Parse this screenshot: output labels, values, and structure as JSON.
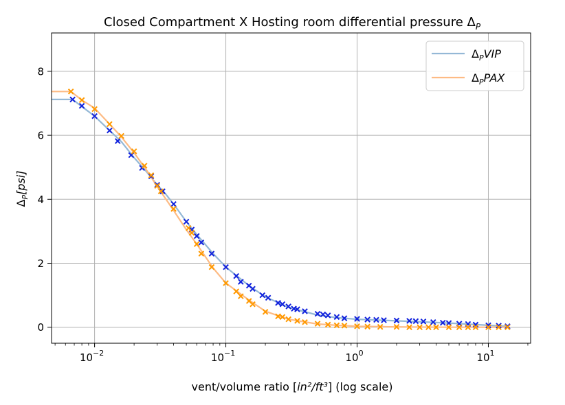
{
  "chart_data": {
    "type": "line",
    "title": "Closed Compartment X Hosting room differential pressure Δ",
    "title_sub": "P",
    "xlabel_pre": "vent/volume ratio [",
    "xlabel_math": "in²/ft³",
    "xlabel_post": "] (log scale)",
    "ylabel_main": "Δ",
    "ylabel_sub": "P",
    "ylabel_unit": "[psi]",
    "xscale": "log",
    "xlim": [
      0.0047,
      21
    ],
    "ylim": [
      -0.5,
      9.2
    ],
    "grid": true,
    "legend_position": "top-right",
    "x_ticks": [
      {
        "value": 0.01,
        "base": "10",
        "exp": "−2"
      },
      {
        "value": 0.1,
        "base": "10",
        "exp": "−1"
      },
      {
        "value": 1,
        "base": "10",
        "exp": "0"
      },
      {
        "value": 10,
        "base": "10",
        "exp": "1"
      }
    ],
    "y_ticks": [
      {
        "value": 0,
        "label": "0"
      },
      {
        "value": 2,
        "label": "2"
      },
      {
        "value": 4,
        "label": "4"
      },
      {
        "value": 6,
        "label": "6"
      },
      {
        "value": 8,
        "label": "8"
      }
    ],
    "series": [
      {
        "name": "VIP",
        "legend_prefix": "Δ",
        "legend_sub": "P",
        "line_color": "#94b8d6",
        "marker_color": "#1122dd",
        "line": [
          [
            0.0047,
            7.12
          ],
          [
            0.0068,
            7.12
          ],
          [
            0.008,
            6.9
          ],
          [
            0.01,
            6.6
          ],
          [
            0.013,
            6.15
          ],
          [
            0.016,
            5.8
          ],
          [
            0.02,
            5.3
          ],
          [
            0.025,
            4.85
          ],
          [
            0.03,
            4.45
          ],
          [
            0.035,
            4.15
          ],
          [
            0.04,
            3.85
          ],
          [
            0.05,
            3.3
          ],
          [
            0.06,
            2.9
          ],
          [
            0.08,
            2.3
          ],
          [
            0.1,
            1.88
          ],
          [
            0.15,
            1.3
          ],
          [
            0.2,
            0.95
          ],
          [
            0.3,
            0.62
          ],
          [
            0.5,
            0.38
          ],
          [
            0.7,
            0.3
          ],
          [
            1.0,
            0.25
          ],
          [
            2.0,
            0.2
          ],
          [
            5.0,
            0.13
          ],
          [
            10.0,
            0.06
          ],
          [
            14.0,
            0.03
          ]
        ],
        "markers": [
          [
            0.0068,
            7.12
          ],
          [
            0.008,
            6.92
          ],
          [
            0.01,
            6.6
          ],
          [
            0.013,
            6.15
          ],
          [
            0.015,
            5.82
          ],
          [
            0.019,
            5.38
          ],
          [
            0.023,
            4.98
          ],
          [
            0.027,
            4.72
          ],
          [
            0.03,
            4.45
          ],
          [
            0.033,
            4.25
          ],
          [
            0.04,
            3.85
          ],
          [
            0.05,
            3.3
          ],
          [
            0.055,
            3.05
          ],
          [
            0.06,
            2.85
          ],
          [
            0.065,
            2.65
          ],
          [
            0.078,
            2.3
          ],
          [
            0.1,
            1.88
          ],
          [
            0.12,
            1.6
          ],
          [
            0.13,
            1.42
          ],
          [
            0.15,
            1.3
          ],
          [
            0.16,
            1.2
          ],
          [
            0.19,
            1.0
          ],
          [
            0.21,
            0.92
          ],
          [
            0.25,
            0.76
          ],
          [
            0.27,
            0.72
          ],
          [
            0.3,
            0.65
          ],
          [
            0.33,
            0.58
          ],
          [
            0.35,
            0.56
          ],
          [
            0.4,
            0.5
          ],
          [
            0.5,
            0.42
          ],
          [
            0.55,
            0.4
          ],
          [
            0.6,
            0.37
          ],
          [
            0.7,
            0.32
          ],
          [
            0.8,
            0.28
          ],
          [
            1.0,
            0.26
          ],
          [
            1.2,
            0.24
          ],
          [
            1.4,
            0.23
          ],
          [
            1.6,
            0.22
          ],
          [
            2.0,
            0.21
          ],
          [
            2.5,
            0.2
          ],
          [
            2.8,
            0.19
          ],
          [
            3.2,
            0.18
          ],
          [
            3.8,
            0.16
          ],
          [
            4.5,
            0.14
          ],
          [
            5.0,
            0.13
          ],
          [
            6.0,
            0.11
          ],
          [
            7.0,
            0.1
          ],
          [
            8.0,
            0.08
          ],
          [
            10.0,
            0.06
          ],
          [
            12.0,
            0.05
          ],
          [
            14.0,
            0.03
          ]
        ]
      },
      {
        "name": "PAX",
        "legend_prefix": "Δ",
        "legend_sub": "P",
        "line_color": "#fdbb84",
        "marker_color": "#ff9900",
        "line": [
          [
            0.0047,
            7.37
          ],
          [
            0.0066,
            7.37
          ],
          [
            0.008,
            7.1
          ],
          [
            0.01,
            6.85
          ],
          [
            0.013,
            6.35
          ],
          [
            0.016,
            5.95
          ],
          [
            0.02,
            5.45
          ],
          [
            0.025,
            4.9
          ],
          [
            0.03,
            4.4
          ],
          [
            0.035,
            4.0
          ],
          [
            0.04,
            3.65
          ],
          [
            0.05,
            3.05
          ],
          [
            0.06,
            2.6
          ],
          [
            0.08,
            1.85
          ],
          [
            0.1,
            1.38
          ],
          [
            0.15,
            0.85
          ],
          [
            0.2,
            0.5
          ],
          [
            0.3,
            0.25
          ],
          [
            0.5,
            0.1
          ],
          [
            0.7,
            0.06
          ],
          [
            1.0,
            0.03
          ],
          [
            2.0,
            0.01
          ],
          [
            5.0,
            0.0
          ],
          [
            10.0,
            0.0
          ],
          [
            14.0,
            0.0
          ]
        ],
        "markers": [
          [
            0.0066,
            7.37
          ],
          [
            0.008,
            7.1
          ],
          [
            0.01,
            6.82
          ],
          [
            0.013,
            6.35
          ],
          [
            0.016,
            5.98
          ],
          [
            0.02,
            5.5
          ],
          [
            0.024,
            5.05
          ],
          [
            0.027,
            4.75
          ],
          [
            0.03,
            4.42
          ],
          [
            0.032,
            4.25
          ],
          [
            0.04,
            3.7
          ],
          [
            0.052,
            3.1
          ],
          [
            0.055,
            2.95
          ],
          [
            0.06,
            2.6
          ],
          [
            0.065,
            2.3
          ],
          [
            0.078,
            1.88
          ],
          [
            0.1,
            1.38
          ],
          [
            0.12,
            1.12
          ],
          [
            0.13,
            0.97
          ],
          [
            0.15,
            0.82
          ],
          [
            0.16,
            0.72
          ],
          [
            0.2,
            0.48
          ],
          [
            0.25,
            0.34
          ],
          [
            0.27,
            0.32
          ],
          [
            0.3,
            0.25
          ],
          [
            0.35,
            0.2
          ],
          [
            0.4,
            0.16
          ],
          [
            0.5,
            0.11
          ],
          [
            0.6,
            0.08
          ],
          [
            0.7,
            0.06
          ],
          [
            0.8,
            0.05
          ],
          [
            1.0,
            0.03
          ],
          [
            1.2,
            0.02
          ],
          [
            1.5,
            0.01
          ],
          [
            2.0,
            0.01
          ],
          [
            2.5,
            0.0
          ],
          [
            3.0,
            0.0
          ],
          [
            3.5,
            0.0
          ],
          [
            4.0,
            0.0
          ],
          [
            5.0,
            0.0
          ],
          [
            6.0,
            0.0
          ],
          [
            7.0,
            0.0
          ],
          [
            8.0,
            0.0
          ],
          [
            10.0,
            0.0
          ],
          [
            12.0,
            0.0
          ],
          [
            14.0,
            0.0
          ]
        ]
      }
    ]
  }
}
